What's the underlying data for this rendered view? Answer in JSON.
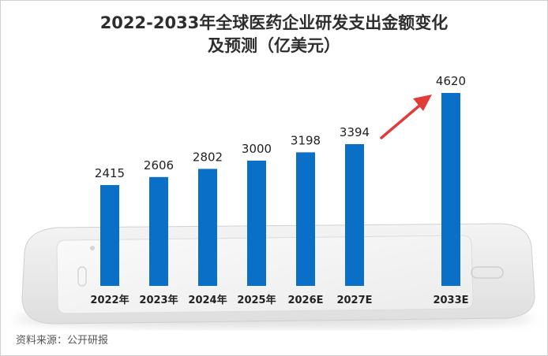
{
  "chart_data": {
    "type": "bar",
    "title_lines": [
      "2022-2033年全球医药企业研发支出金额变化",
      "及预测（亿美元）"
    ],
    "categories": [
      "2022年",
      "2023年",
      "2024年",
      "2025年",
      "2026E",
      "2027E",
      "2033E"
    ],
    "values": [
      2415,
      2606,
      2802,
      3000,
      3198,
      3394,
      4620
    ],
    "data_labels": [
      "2415",
      "2606",
      "2802",
      "3000",
      "3198",
      "3394",
      "4620"
    ],
    "ylim": [
      0,
      4620
    ],
    "bar_color": "#0a6fc7",
    "annotation": "red-arrow-pointing-to-2033E",
    "arrow_color": "#e23b3b"
  },
  "source": "资料来源：公开研报"
}
